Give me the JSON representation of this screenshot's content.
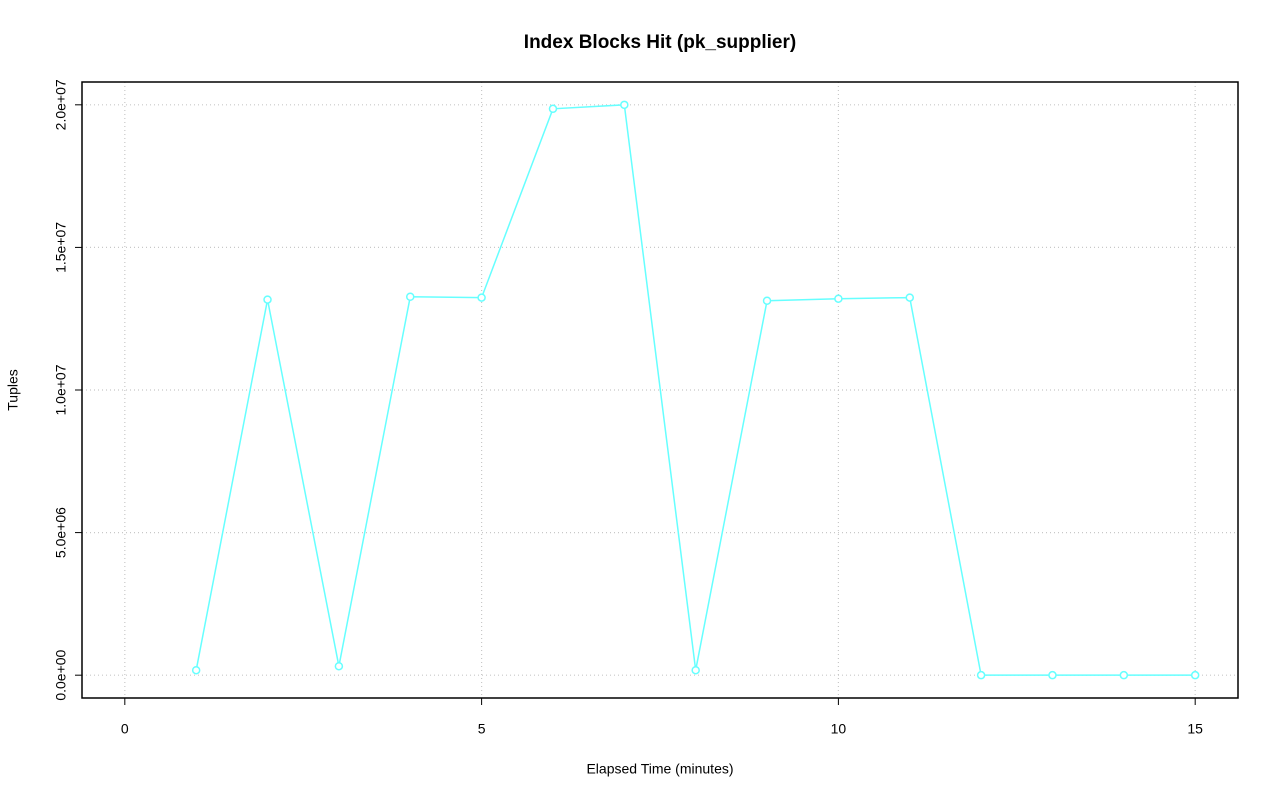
{
  "chart_data": {
    "type": "line",
    "title": "Index Blocks Hit (pk_supplier)",
    "x_label": "Elapsed Time (minutes)",
    "y_label": "Tuples",
    "x": [
      1,
      2,
      3,
      4,
      5,
      6,
      7,
      8,
      9,
      10,
      11,
      12,
      13,
      14,
      15
    ],
    "series": [
      {
        "color": "#66ffff",
        "values": [
          175000,
          13170000,
          315000,
          13270000,
          13240000,
          19860000,
          20000000,
          175000,
          13130000,
          13200000,
          13240000,
          0,
          0,
          0,
          0
        ]
      }
    ],
    "xlim": [
      -0.6,
      15.6
    ],
    "ylim": [
      -800000,
      20800000
    ],
    "xticks": [
      0,
      5,
      10,
      15
    ],
    "yticks": [
      {
        "value": 0,
        "label": "0.0e+00"
      },
      {
        "value": 5000000,
        "label": "5.0e+06"
      },
      {
        "value": 10000000,
        "label": "1.0e+07"
      },
      {
        "value": 15000000,
        "label": "1.5e+07"
      },
      {
        "value": 20000000,
        "label": "2.0e+07"
      }
    ],
    "grid": true,
    "markers": "open-circle"
  }
}
